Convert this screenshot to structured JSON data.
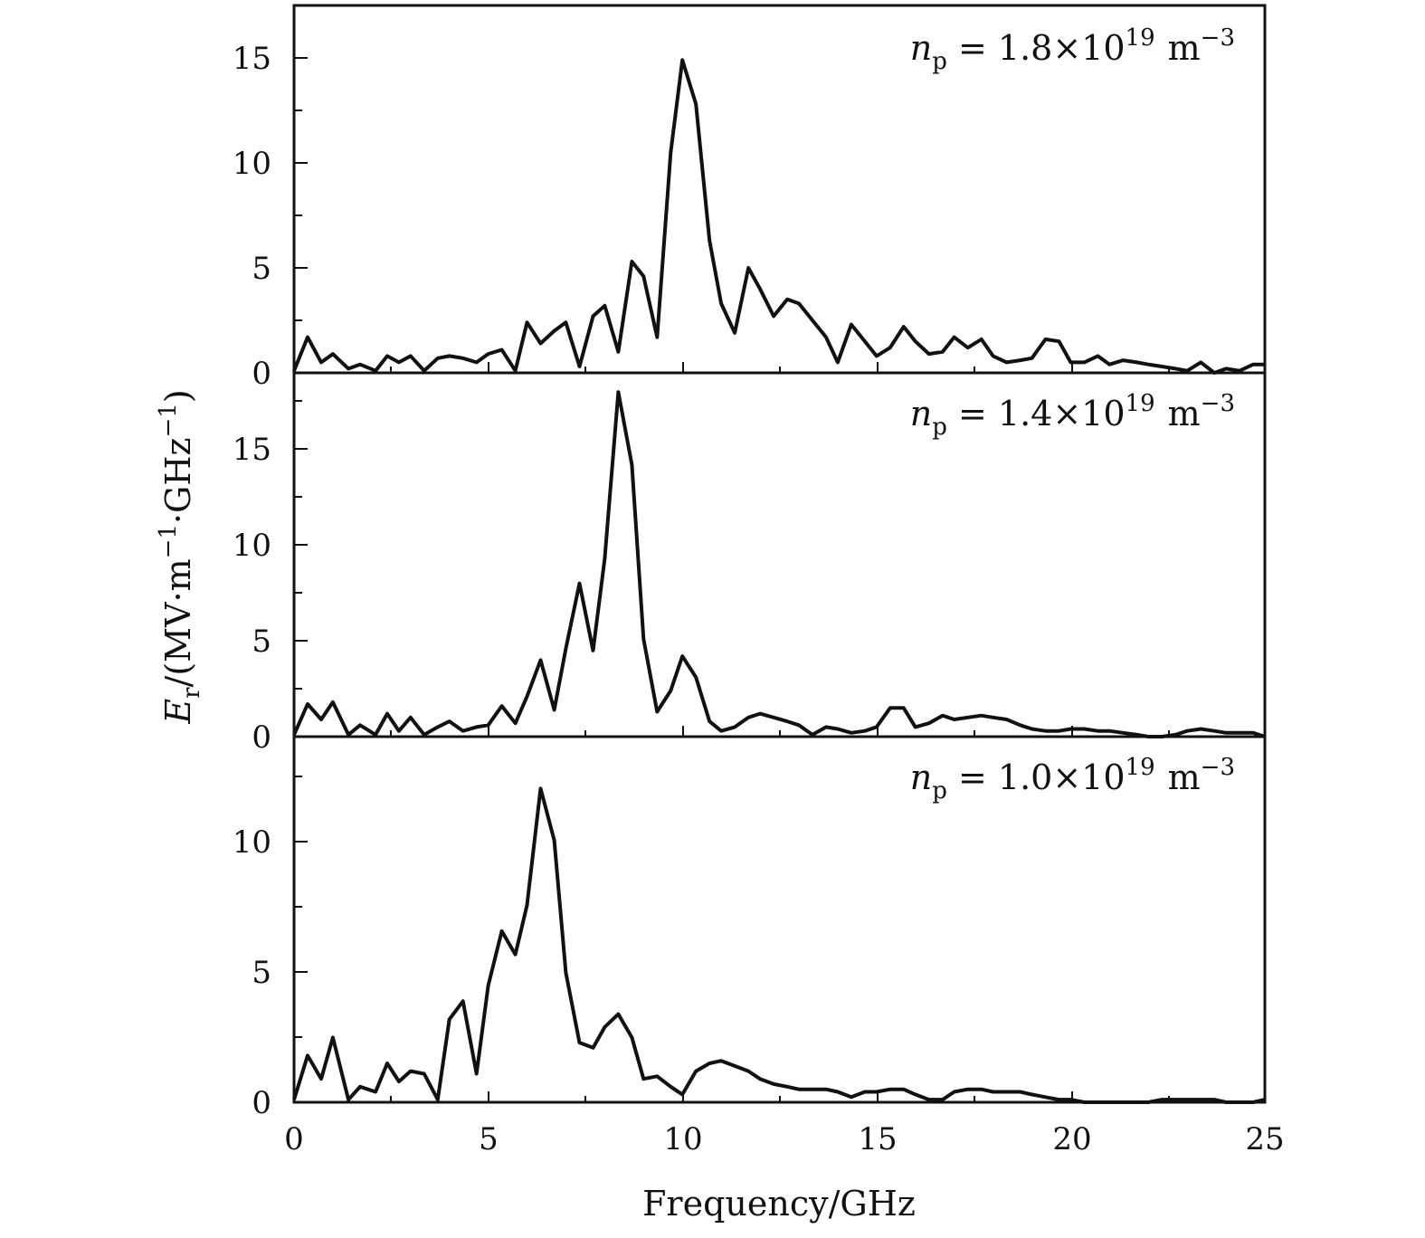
{
  "chart_data": [
    {
      "type": "line",
      "annotation": {
        "symbol": "n",
        "subscript": "p",
        "eq": " = ",
        "mantissa": "1.8",
        "times": "×",
        "base": "10",
        "exponent": "19",
        "unit": "m",
        "unit_exponent": "−3"
      },
      "ylim": [
        0,
        17.5
      ],
      "yticks": [
        0,
        5,
        10,
        15
      ],
      "yticklabels": [
        "0",
        "5",
        "10",
        "15"
      ],
      "x": [
        0,
        0.35,
        0.7,
        1.0,
        1.4,
        1.7,
        2.1,
        2.4,
        2.7,
        3.0,
        3.35,
        3.7,
        4.0,
        4.35,
        4.7,
        5.0,
        5.35,
        5.7,
        6.0,
        6.35,
        6.7,
        7.0,
        7.35,
        7.7,
        8.0,
        8.35,
        8.7,
        9.0,
        9.35,
        9.7,
        10.0,
        10.35,
        10.7,
        11.0,
        11.35,
        11.7,
        12.0,
        12.35,
        12.7,
        13.0,
        13.35,
        13.7,
        14.0,
        14.35,
        14.7,
        15.0,
        15.35,
        15.7,
        16.0,
        16.35,
        16.7,
        17.0,
        17.35,
        17.7,
        18.0,
        18.35,
        18.7,
        19.0,
        19.35,
        19.7,
        20.0,
        20.35,
        20.7,
        21.0,
        21.35,
        21.7,
        22.0,
        22.35,
        22.7,
        23.0,
        23.35,
        23.7,
        24.0,
        24.35,
        24.7,
        25.0
      ],
      "y": [
        0.1,
        1.7,
        0.5,
        0.9,
        0.2,
        0.4,
        0.1,
        0.8,
        0.5,
        0.8,
        0.1,
        0.7,
        0.8,
        0.7,
        0.5,
        0.9,
        1.1,
        0.1,
        2.4,
        1.4,
        2.0,
        2.4,
        0.3,
        2.7,
        3.2,
        1.0,
        5.3,
        4.6,
        1.7,
        10.5,
        14.9,
        12.8,
        6.3,
        3.3,
        1.9,
        5.0,
        4.0,
        2.7,
        3.5,
        3.3,
        2.5,
        1.7,
        0.5,
        2.3,
        1.5,
        0.8,
        1.2,
        2.2,
        1.5,
        0.9,
        1.0,
        1.7,
        1.2,
        1.6,
        0.8,
        0.5,
        0.6,
        0.7,
        1.6,
        1.5,
        0.5,
        0.5,
        0.8,
        0.4,
        0.6,
        0.5,
        0.4,
        0.3,
        0.2,
        0.1,
        0.5,
        0.0,
        0.2,
        0.1,
        0.4,
        0.4
      ]
    },
    {
      "type": "line",
      "annotation": {
        "symbol": "n",
        "subscript": "p",
        "eq": " = ",
        "mantissa": "1.4",
        "times": "×",
        "base": "10",
        "exponent": "19",
        "unit": "m",
        "unit_exponent": "−3"
      },
      "ylim": [
        0,
        19
      ],
      "yticks": [
        0,
        5,
        10,
        15
      ],
      "yticklabels": [
        "0",
        "5",
        "10",
        "15"
      ],
      "x": [
        0,
        0.35,
        0.7,
        1.0,
        1.4,
        1.7,
        2.1,
        2.4,
        2.7,
        3.0,
        3.35,
        3.7,
        4.0,
        4.35,
        4.7,
        5.0,
        5.35,
        5.7,
        6.0,
        6.35,
        6.7,
        7.0,
        7.35,
        7.7,
        8.0,
        8.35,
        8.7,
        9.0,
        9.35,
        9.7,
        10.0,
        10.35,
        10.7,
        11.0,
        11.35,
        11.7,
        12.0,
        12.35,
        12.7,
        13.0,
        13.35,
        13.7,
        14.0,
        14.35,
        14.7,
        15.0,
        15.35,
        15.7,
        16.0,
        16.35,
        16.7,
        17.0,
        17.35,
        17.7,
        18.0,
        18.35,
        18.7,
        19.0,
        19.35,
        19.7,
        20.0,
        20.35,
        20.7,
        21.0,
        21.35,
        21.7,
        22.0,
        22.35,
        22.7,
        23.0,
        23.35,
        23.7,
        24.0,
        24.35,
        24.7,
        25.0
      ],
      "y": [
        0.1,
        1.7,
        0.9,
        1.8,
        0.1,
        0.6,
        0.1,
        1.2,
        0.3,
        1.0,
        0.1,
        0.5,
        0.8,
        0.3,
        0.5,
        0.6,
        1.6,
        0.7,
        2.1,
        4.0,
        1.4,
        4.6,
        8.0,
        4.5,
        9.3,
        18.0,
        14.2,
        5.1,
        1.3,
        2.4,
        4.2,
        3.1,
        0.8,
        0.3,
        0.5,
        1.0,
        1.2,
        1.0,
        0.8,
        0.6,
        0.1,
        0.5,
        0.4,
        0.2,
        0.3,
        0.5,
        1.5,
        1.5,
        0.5,
        0.7,
        1.1,
        0.9,
        1.0,
        1.1,
        1.0,
        0.9,
        0.6,
        0.4,
        0.3,
        0.3,
        0.4,
        0.4,
        0.3,
        0.3,
        0.2,
        0.1,
        0.0,
        0.0,
        0.1,
        0.3,
        0.4,
        0.3,
        0.2,
        0.2,
        0.2,
        0.0
      ]
    },
    {
      "type": "line",
      "annotation": {
        "symbol": "n",
        "subscript": "p",
        "eq": " = ",
        "mantissa": "1.0",
        "times": "×",
        "base": "10",
        "exponent": "19",
        "unit": "m",
        "unit_exponent": "−3"
      },
      "ylim": [
        0,
        14.1
      ],
      "yticks": [
        0,
        5,
        10
      ],
      "yticklabels": [
        "0",
        "5",
        "10"
      ],
      "x": [
        0,
        0.35,
        0.7,
        1.0,
        1.4,
        1.7,
        2.1,
        2.4,
        2.7,
        3.0,
        3.35,
        3.7,
        4.0,
        4.35,
        4.7,
        5.0,
        5.35,
        5.7,
        6.0,
        6.35,
        6.7,
        7.0,
        7.35,
        7.7,
        8.0,
        8.35,
        8.7,
        9.0,
        9.35,
        9.7,
        10.0,
        10.35,
        10.7,
        11.0,
        11.35,
        11.7,
        12.0,
        12.35,
        12.7,
        13.0,
        13.35,
        13.7,
        14.0,
        14.35,
        14.7,
        15.0,
        15.35,
        15.7,
        16.0,
        16.35,
        16.7,
        17.0,
        17.35,
        17.7,
        18.0,
        18.35,
        18.7,
        19.0,
        19.35,
        19.7,
        20.0,
        20.35,
        20.7,
        21.0,
        21.35,
        21.7,
        22.0,
        22.35,
        22.7,
        23.0,
        23.35,
        23.7,
        24.0,
        24.35,
        24.7,
        25.0
      ],
      "y": [
        0.1,
        1.8,
        0.9,
        2.5,
        0.1,
        0.6,
        0.4,
        1.5,
        0.8,
        1.2,
        1.1,
        0.1,
        3.2,
        3.9,
        1.1,
        4.5,
        6.6,
        5.7,
        7.6,
        12.1,
        10.1,
        5.0,
        2.3,
        2.1,
        2.9,
        3.4,
        2.5,
        0.9,
        1.0,
        0.6,
        0.3,
        1.2,
        1.5,
        1.6,
        1.4,
        1.2,
        0.9,
        0.7,
        0.6,
        0.5,
        0.5,
        0.5,
        0.4,
        0.2,
        0.4,
        0.4,
        0.5,
        0.5,
        0.3,
        0.1,
        0.1,
        0.4,
        0.5,
        0.5,
        0.4,
        0.4,
        0.4,
        0.3,
        0.2,
        0.1,
        0.1,
        0.0,
        0.0,
        0.0,
        0.0,
        0.0,
        0.0,
        0.1,
        0.1,
        0.1,
        0.1,
        0.1,
        0.0,
        0.0,
        0.0,
        0.1
      ]
    }
  ],
  "shared_axes": {
    "xlim": [
      0,
      25
    ],
    "xticks": [
      0,
      5,
      10,
      15,
      20,
      25
    ],
    "xticklabels": [
      "0",
      "5",
      "10",
      "15",
      "20",
      "25"
    ],
    "xlabel": "Frequency/GHz",
    "ylabel": {
      "symbol": "E",
      "subscript": "r",
      "rest_open": "/(MV·m",
      "exp1": "−1",
      "mid": "·GHz",
      "exp2": "−1",
      "close": ")"
    },
    "line_color": "#111111"
  }
}
